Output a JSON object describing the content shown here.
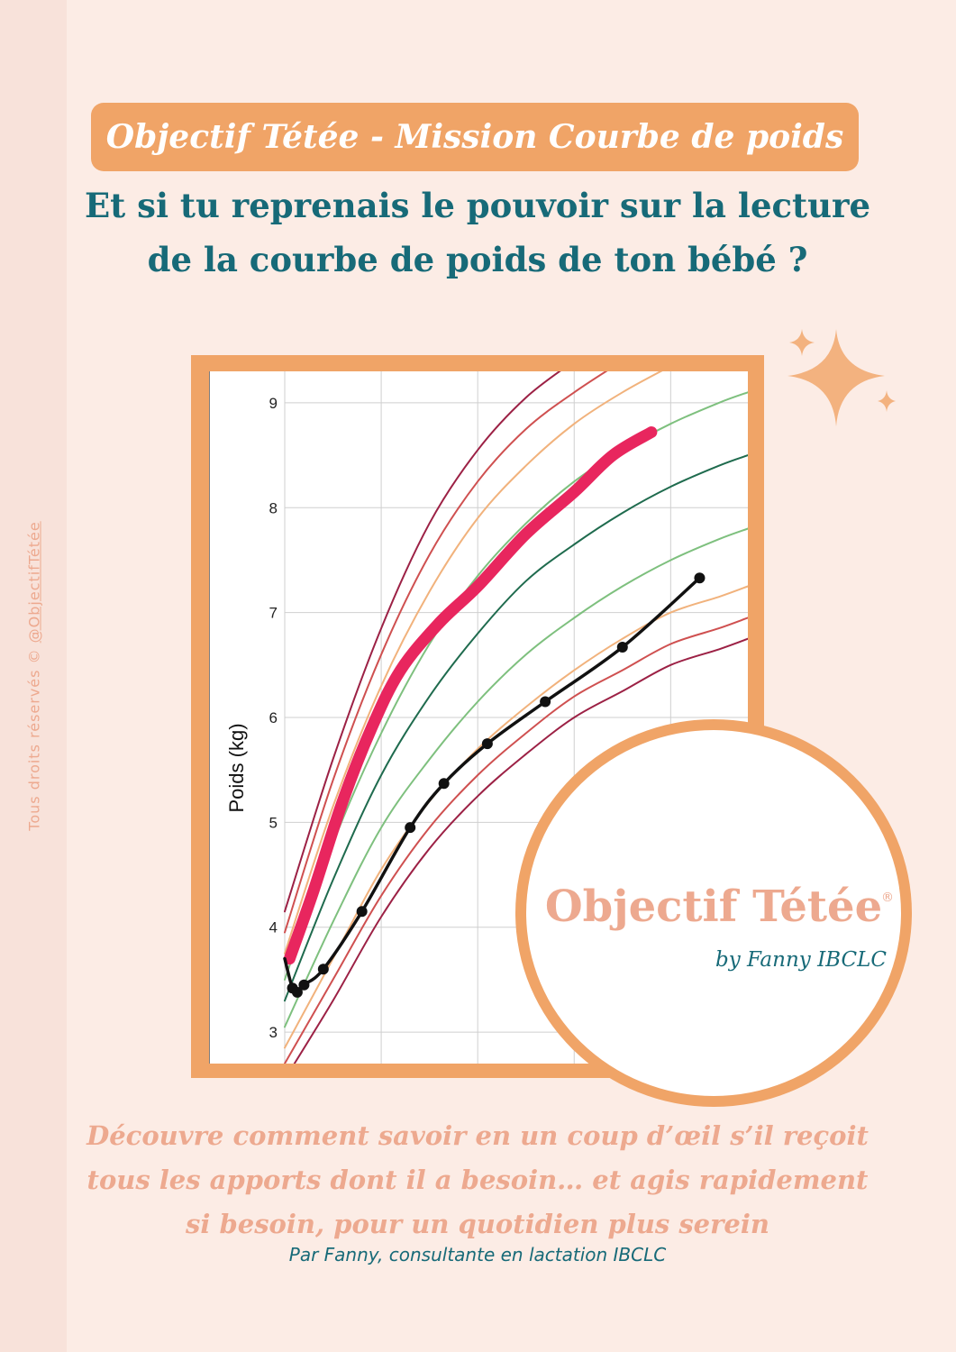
{
  "sidebar": {
    "copyright": "Tous droits réservés ©",
    "handle": "@ObjectifTétée"
  },
  "header": {
    "title": "Objectif Tétée - Mission Courbe de poids",
    "headline_line1": "Et si tu reprenais le pouvoir sur la lecture",
    "headline_line2": "de la courbe de poids de ton bébé ?"
  },
  "logo": {
    "name": "Objectif Tétée",
    "registered": "®",
    "tagline": "by Fanny IBCLC"
  },
  "footer": {
    "description": "Découvre comment savoir en un coup d’œil s’il reçoit tous les apports dont il a besoin… et agis rapidement si besoin, pour un quotidien plus serein",
    "byline": "Par Fanny, consultante en lactation IBCLC"
  },
  "colors": {
    "background": "#fcece5",
    "accent_orange": "#f0a467",
    "teal": "#176a78",
    "peach_text": "#eda98f"
  },
  "icons": [
    "sparkles-icon"
  ],
  "chart_data": {
    "type": "line",
    "title": "",
    "xlabel": "",
    "ylabel": "Poids (kg)",
    "ylim": [
      2.7,
      9.3
    ],
    "xlim": [
      0,
      4.8
    ],
    "yticks": [
      3,
      4,
      5,
      6,
      7,
      8,
      9
    ],
    "grid": true,
    "series": [
      {
        "role": "reference-curve",
        "color": "#9c2145",
        "x": [
          0,
          0.5,
          1,
          1.5,
          2,
          2.5,
          3
        ],
        "y": [
          4.15,
          5.6,
          6.85,
          7.85,
          8.55,
          9.05,
          9.4
        ]
      },
      {
        "role": "reference-curve",
        "color": "#cf5050",
        "x": [
          0,
          0.5,
          1,
          1.5,
          2,
          2.5,
          3,
          3.5
        ],
        "y": [
          3.95,
          5.4,
          6.6,
          7.55,
          8.25,
          8.75,
          9.1,
          9.4
        ]
      },
      {
        "role": "reference-curve",
        "color": "#f1b27c",
        "x": [
          0,
          0.5,
          1,
          1.5,
          2,
          2.5,
          3,
          3.5,
          4
        ],
        "y": [
          3.75,
          5.15,
          6.3,
          7.2,
          7.9,
          8.4,
          8.8,
          9.1,
          9.35
        ]
      },
      {
        "role": "reference-curve",
        "color": "#7ec07e",
        "x": [
          0,
          0.5,
          1,
          1.5,
          2,
          2.5,
          3,
          3.5,
          4,
          4.5,
          4.8
        ],
        "y": [
          3.5,
          4.8,
          5.85,
          6.7,
          7.35,
          7.85,
          8.25,
          8.55,
          8.8,
          9.0,
          9.1
        ]
      },
      {
        "role": "reference-curve",
        "color": "#1f6b4e",
        "x": [
          0,
          0.5,
          1,
          1.5,
          2,
          2.5,
          3,
          3.5,
          4,
          4.5,
          4.8
        ],
        "y": [
          3.3,
          4.45,
          5.45,
          6.2,
          6.8,
          7.3,
          7.65,
          7.95,
          8.2,
          8.4,
          8.5
        ]
      },
      {
        "role": "reference-curve",
        "color": "#7ec07e",
        "x": [
          0,
          0.5,
          1,
          1.5,
          2,
          2.5,
          3,
          3.5,
          4,
          4.5,
          4.8
        ],
        "y": [
          3.05,
          4.05,
          4.95,
          5.6,
          6.15,
          6.6,
          6.95,
          7.25,
          7.5,
          7.7,
          7.8
        ]
      },
      {
        "role": "reference-curve",
        "color": "#f1b27c",
        "x": [
          0,
          0.5,
          1,
          1.5,
          2,
          2.5,
          3,
          3.5,
          4,
          4.5,
          4.8
        ],
        "y": [
          2.85,
          3.7,
          4.55,
          5.2,
          5.7,
          6.1,
          6.45,
          6.75,
          7.0,
          7.15,
          7.25
        ]
      },
      {
        "role": "reference-curve",
        "color": "#cf5050",
        "x": [
          0,
          0.5,
          1,
          1.5,
          2,
          2.5,
          3,
          3.5,
          4,
          4.5,
          4.8
        ],
        "y": [
          2.7,
          3.5,
          4.3,
          4.95,
          5.45,
          5.85,
          6.2,
          6.45,
          6.7,
          6.85,
          6.95
        ]
      },
      {
        "role": "reference-curve",
        "color": "#9c2145",
        "x": [
          0,
          0.5,
          1,
          1.5,
          2,
          2.5,
          3,
          3.5,
          4,
          4.5,
          4.8
        ],
        "y": [
          2.55,
          3.3,
          4.1,
          4.75,
          5.25,
          5.65,
          6.0,
          6.25,
          6.5,
          6.65,
          6.75
        ]
      },
      {
        "role": "highlight",
        "color": "#e8265e",
        "x": [
          0.05,
          0.3,
          0.6,
          0.9,
          1.2,
          1.6,
          2.0,
          2.5,
          3.0,
          3.4,
          3.8
        ],
        "y": [
          3.7,
          4.35,
          5.2,
          5.9,
          6.45,
          6.9,
          7.25,
          7.75,
          8.15,
          8.5,
          8.72
        ]
      },
      {
        "role": "baby-curve",
        "color": "#111111",
        "x": [
          0,
          0.08,
          0.13,
          0.2,
          0.4,
          0.8,
          1.3,
          1.65,
          2.1,
          2.7,
          3.5,
          4.3
        ],
        "y": [
          3.7,
          3.42,
          3.38,
          3.45,
          3.6,
          4.15,
          4.95,
          5.37,
          5.75,
          6.15,
          6.67,
          7.33
        ],
        "markers": [
          false,
          true,
          true,
          true,
          true,
          true,
          true,
          true,
          true,
          true,
          true,
          true
        ]
      }
    ]
  }
}
